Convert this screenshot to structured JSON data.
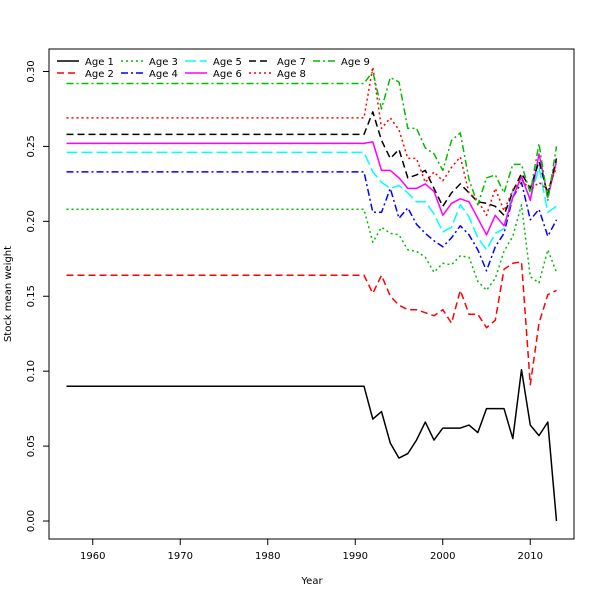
{
  "chart_data": {
    "type": "line",
    "xlabel": "Year",
    "ylabel": "Stock mean weight",
    "xlim": [
      1955,
      2015
    ],
    "ylim": [
      -0.012,
      0.315
    ],
    "xticks": [
      1960,
      1970,
      1980,
      1990,
      2000,
      2010
    ],
    "yticks": [
      0.0,
      0.05,
      0.1,
      0.15,
      0.2,
      0.25,
      0.3
    ],
    "ytick_labels": [
      "0.00",
      "0.05",
      "0.10",
      "0.15",
      "0.20",
      "0.25",
      "0.30"
    ],
    "grid": false,
    "legend_position": "top-left",
    "series": [
      {
        "name": "Age 1",
        "color": "#000000",
        "dash": "solid",
        "x": [
          1957,
          1991,
          1992,
          1993,
          1994,
          1995,
          1996,
          1997,
          1998,
          1999,
          2000,
          2001,
          2002,
          2003,
          2004,
          2005,
          2006,
          2007,
          2008,
          2009,
          2010,
          2011,
          2012,
          2013
        ],
        "y": [
          0.09,
          0.09,
          0.068,
          0.073,
          0.052,
          0.042,
          0.045,
          0.054,
          0.066,
          0.054,
          0.062,
          0.062,
          0.062,
          0.064,
          0.059,
          0.075,
          0.075,
          0.075,
          0.055,
          0.101,
          0.064,
          0.057,
          0.066,
          0.0
        ]
      },
      {
        "name": "Age 2",
        "color": "#ff0000",
        "dash": "dashed",
        "x": [
          1957,
          1991,
          1992,
          1993,
          1994,
          1995,
          1996,
          1997,
          1998,
          1999,
          2000,
          2001,
          2002,
          2003,
          2004,
          2005,
          2006,
          2007,
          2008,
          2009,
          2010,
          2011,
          2012,
          2013
        ],
        "y": [
          0.164,
          0.164,
          0.152,
          0.164,
          0.15,
          0.144,
          0.141,
          0.141,
          0.139,
          0.137,
          0.141,
          0.132,
          0.154,
          0.138,
          0.138,
          0.129,
          0.134,
          0.168,
          0.172,
          0.173,
          0.091,
          0.132,
          0.151,
          0.154
        ]
      },
      {
        "name": "Age 3",
        "color": "#00bb00",
        "dash": "dotted",
        "x": [
          1957,
          1991,
          1992,
          1993,
          1994,
          1995,
          1996,
          1997,
          1998,
          1999,
          2000,
          2001,
          2002,
          2003,
          2004,
          2005,
          2006,
          2007,
          2008,
          2009,
          2010,
          2011,
          2012,
          2013
        ],
        "y": [
          0.208,
          0.208,
          0.186,
          0.196,
          0.192,
          0.191,
          0.181,
          0.18,
          0.176,
          0.166,
          0.172,
          0.171,
          0.177,
          0.176,
          0.16,
          0.154,
          0.162,
          0.18,
          0.19,
          0.211,
          0.163,
          0.159,
          0.181,
          0.166
        ]
      },
      {
        "name": "Age 4",
        "color": "#0000ff",
        "dash": "dashdot",
        "x": [
          1957,
          1991,
          1992,
          1993,
          1994,
          1995,
          1996,
          1997,
          1998,
          1999,
          2000,
          2001,
          2002,
          2003,
          2004,
          2005,
          2006,
          2007,
          2008,
          2009,
          2010,
          2011,
          2012,
          2013
        ],
        "y": [
          0.233,
          0.233,
          0.206,
          0.206,
          0.222,
          0.202,
          0.209,
          0.198,
          0.192,
          0.187,
          0.183,
          0.189,
          0.197,
          0.191,
          0.181,
          0.167,
          0.183,
          0.192,
          0.216,
          0.226,
          0.201,
          0.208,
          0.19,
          0.201
        ]
      },
      {
        "name": "Age 5",
        "color": "#00ffff",
        "dash": "longdash",
        "x": [
          1957,
          1991,
          1992,
          1993,
          1994,
          1995,
          1996,
          1997,
          1998,
          1999,
          2000,
          2001,
          2002,
          2003,
          2004,
          2005,
          2006,
          2007,
          2008,
          2009,
          2010,
          2011,
          2012,
          2013
        ],
        "y": [
          0.246,
          0.246,
          0.233,
          0.226,
          0.222,
          0.224,
          0.219,
          0.213,
          0.213,
          0.205,
          0.193,
          0.196,
          0.211,
          0.203,
          0.189,
          0.181,
          0.192,
          0.195,
          0.221,
          0.229,
          0.215,
          0.236,
          0.206,
          0.21
        ]
      },
      {
        "name": "Age 6",
        "color": "#ff00ff",
        "dash": "solid",
        "x": [
          1957,
          1991,
          1992,
          1993,
          1994,
          1995,
          1996,
          1997,
          1998,
          1999,
          2000,
          2001,
          2002,
          2003,
          2004,
          2005,
          2006,
          2007,
          2008,
          2009,
          2010,
          2011,
          2012,
          2013
        ],
        "y": [
          0.252,
          0.252,
          0.253,
          0.234,
          0.234,
          0.229,
          0.222,
          0.222,
          0.225,
          0.22,
          0.204,
          0.212,
          0.215,
          0.213,
          0.202,
          0.191,
          0.204,
          0.197,
          0.216,
          0.23,
          0.214,
          0.245,
          0.216,
          0.24
        ]
      },
      {
        "name": "Age 7",
        "color": "#000000",
        "dash": "dashed",
        "x": [
          1957,
          1991,
          1992,
          1993,
          1994,
          1995,
          1996,
          1997,
          1998,
          1999,
          2000,
          2001,
          2002,
          2003,
          2004,
          2005,
          2006,
          2007,
          2008,
          2009,
          2010,
          2011,
          2012,
          2013
        ],
        "y": [
          0.258,
          0.258,
          0.273,
          0.254,
          0.242,
          0.248,
          0.229,
          0.231,
          0.234,
          0.222,
          0.21,
          0.219,
          0.225,
          0.219,
          0.213,
          0.212,
          0.21,
          0.204,
          0.22,
          0.232,
          0.222,
          0.24,
          0.218,
          0.242
        ]
      },
      {
        "name": "Age 8",
        "color": "#ff0000",
        "dash": "dotted",
        "x": [
          1957,
          1991,
          1992,
          1993,
          1994,
          1995,
          1996,
          1997,
          1998,
          1999,
          2000,
          2001,
          2002,
          2003,
          2004,
          2005,
          2006,
          2007,
          2008,
          2009,
          2010,
          2011,
          2012,
          2013
        ],
        "y": [
          0.269,
          0.269,
          0.303,
          0.262,
          0.269,
          0.261,
          0.242,
          0.242,
          0.226,
          0.233,
          0.227,
          0.236,
          0.243,
          0.219,
          0.214,
          0.204,
          0.222,
          0.207,
          0.221,
          0.228,
          0.221,
          0.226,
          0.221,
          0.236
        ]
      },
      {
        "name": "Age 9",
        "color": "#00bb00",
        "dash": "dashdot",
        "x": [
          1957,
          1991,
          1992,
          1993,
          1994,
          1995,
          1996,
          1997,
          1998,
          1999,
          2000,
          2001,
          2002,
          2003,
          2004,
          2005,
          2006,
          2007,
          2008,
          2009,
          2010,
          2011,
          2012,
          2013
        ],
        "y": [
          0.292,
          0.292,
          0.3,
          0.275,
          0.296,
          0.293,
          0.262,
          0.262,
          0.249,
          0.245,
          0.234,
          0.254,
          0.259,
          0.228,
          0.211,
          0.229,
          0.231,
          0.219,
          0.238,
          0.238,
          0.219,
          0.252,
          0.214,
          0.25
        ]
      }
    ]
  }
}
